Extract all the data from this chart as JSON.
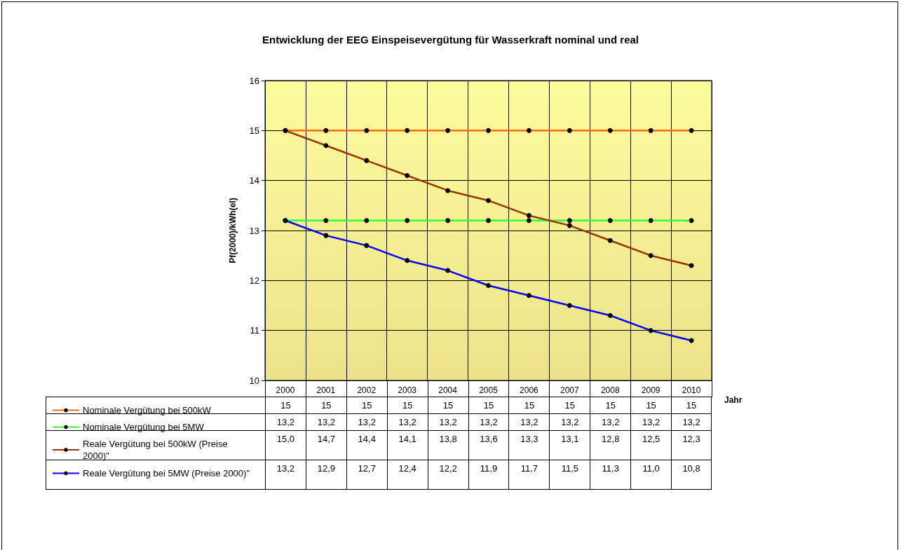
{
  "chart_data": {
    "type": "line",
    "title": "Entwicklung der EEG Einspeisevergütung für Wasserkraft nominal und real",
    "xlabel": "Jahr",
    "ylabel": "Pf(2000)/kWh(el)",
    "categories": [
      "2000",
      "2001",
      "2002",
      "2003",
      "2004",
      "2005",
      "2006",
      "2007",
      "2008",
      "2009",
      "2010"
    ],
    "ylim": [
      10,
      16
    ],
    "yticks": [
      10,
      11,
      12,
      13,
      14,
      15,
      16
    ],
    "grid": true,
    "legend": "bottom",
    "marker": "circle",
    "line_style": "solid",
    "series": [
      {
        "name": "Nominale Vergütung bei 500kW",
        "color": "#ff6a13",
        "values": [
          15,
          15,
          15,
          15,
          15,
          15,
          15,
          15,
          15,
          15,
          15
        ],
        "value_labels": [
          "15",
          "15",
          "15",
          "15",
          "15",
          "15",
          "15",
          "15",
          "15",
          "15",
          "15"
        ]
      },
      {
        "name": "Nominale Vergütung bei 5MW",
        "color": "#33ff33",
        "values": [
          13.2,
          13.2,
          13.2,
          13.2,
          13.2,
          13.2,
          13.2,
          13.2,
          13.2,
          13.2,
          13.2
        ],
        "value_labels": [
          "13,2",
          "13,2",
          "13,2",
          "13,2",
          "13,2",
          "13,2",
          "13,2",
          "13,2",
          "13,2",
          "13,2",
          "13,2"
        ]
      },
      {
        "name": "Reale Vergütung bei 500kW (Preise 2000)\"",
        "color": "#993300",
        "values": [
          15.0,
          14.7,
          14.4,
          14.1,
          13.8,
          13.6,
          13.3,
          13.1,
          12.8,
          12.5,
          12.3
        ],
        "value_labels": [
          "15,0",
          "14,7",
          "14,4",
          "14,1",
          "13,8",
          "13,6",
          "13,3",
          "13,1",
          "12,8",
          "12,5",
          "12,3"
        ]
      },
      {
        "name": "Reale Vergütung bei 5MW (Preise 2000)\"",
        "color": "#0000ff",
        "values": [
          13.2,
          12.9,
          12.7,
          12.4,
          12.2,
          11.9,
          11.7,
          11.5,
          11.3,
          11.0,
          10.8
        ],
        "value_labels": [
          "13,2",
          "12,9",
          "12,7",
          "12,4",
          "12,2",
          "11,9",
          "11,7",
          "11,5",
          "11,3",
          "11,0",
          "10,8"
        ]
      }
    ]
  }
}
